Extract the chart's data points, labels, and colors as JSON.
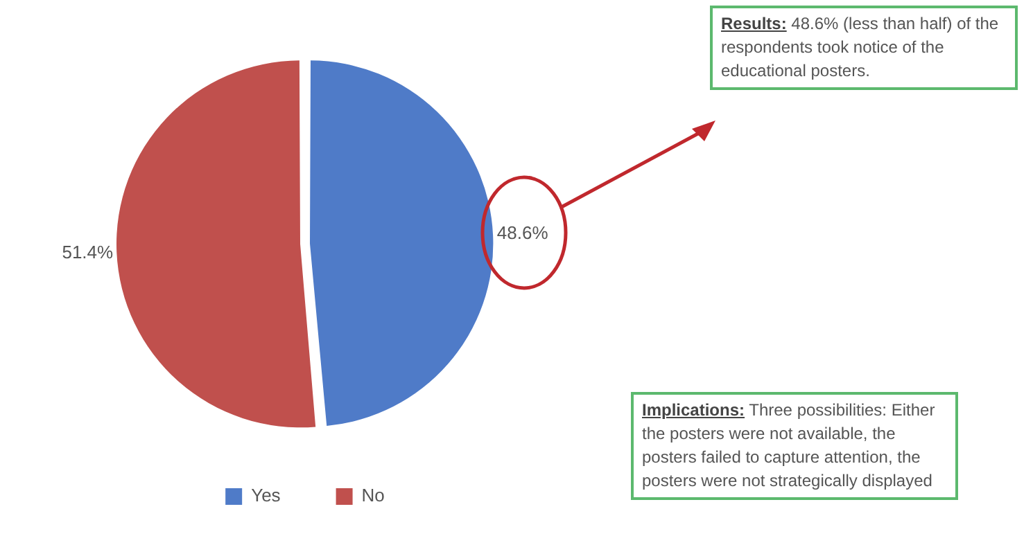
{
  "chart_data": {
    "type": "pie",
    "categories": [
      "Yes",
      "No"
    ],
    "values": [
      48.6,
      51.4
    ],
    "colors": [
      "#4f7bc8",
      "#c0504d"
    ],
    "value_labels": [
      "48.6%",
      "51.4%"
    ],
    "legend": "bottom",
    "annotations": [
      "Results: 48.6% (less than half) of the respondents took notice of the educational posters.",
      "Implications: Three possibilities: Either the posters were not available, the posters failed to capture attention, the posters were not strategically displayed"
    ]
  }
}
